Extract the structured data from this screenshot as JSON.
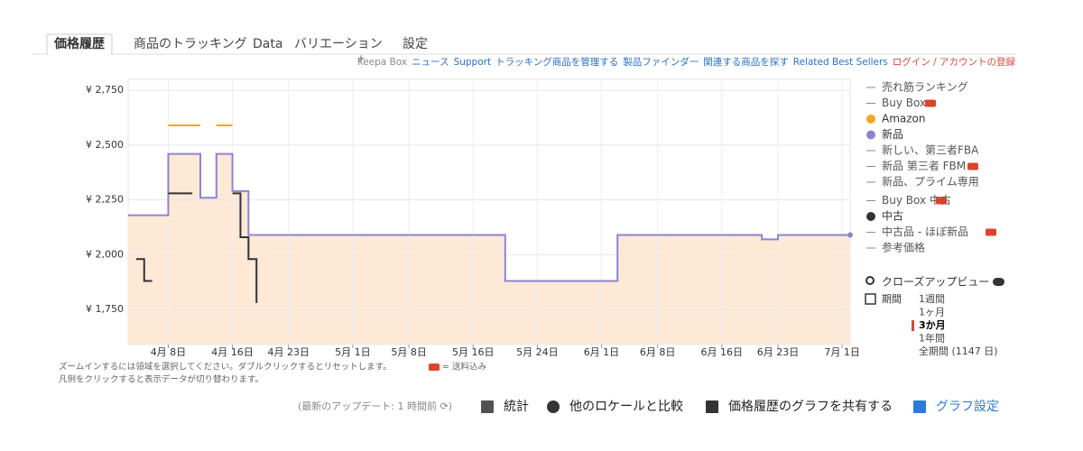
{
  "tabs": [
    "価格履歴",
    "商品のトラッキング",
    "Data",
    "バリエーション",
    "設定"
  ],
  "links": [
    "Keepa Box",
    "ニュース",
    "Support",
    "トラッキング商品を管理する",
    "製品ファインダー",
    "関連する商品を探す",
    "Related Best Sellers",
    "ログイン / アカウントの登録"
  ],
  "legend_other": [
    "売れ筋ランキング",
    "Buy Box",
    "新しい、第三者FBA",
    "新品 第三者 FBM",
    "新品、プライム専用",
    "Buy Box 中古",
    "中古品 - ほぼ新品",
    "参考価格"
  ],
  "closeup": "クローズアップビュー",
  "period": {
    "label": "期間",
    "options": [
      "1週間",
      "1ヶ月",
      "3か月",
      "1年間",
      "全期間 (1147 日)"
    ],
    "selected": 2
  },
  "notes": [
    "ズームインするには領域を選択してください。ダブルクリックするとリセットします。",
    "= 送料込み",
    "凡例をクリックすると表示データが切り替わります。"
  ],
  "footer": {
    "update": "(最新のアップデート: 1 時間前 ⟳)",
    "actions": [
      "統計",
      "他のロケールと比較",
      "価格履歴のグラフを共有する",
      "グラフ設定"
    ]
  },
  "chart_data": {
    "type": "step",
    "xlim": [
      "04-03",
      "07-02"
    ],
    "xticks": [
      {
        "value": "04-08",
        "label": "4月 8日"
      },
      {
        "value": "04-16",
        "label": "4月 16日"
      },
      {
        "value": "04-23",
        "label": "4月 23日"
      },
      {
        "value": "05-01",
        "label": "5月 1日"
      },
      {
        "value": "05-08",
        "label": "5月 8日"
      },
      {
        "value": "05-16",
        "label": "5月 16日"
      },
      {
        "value": "05-24",
        "label": "5月 24日"
      },
      {
        "value": "06-01",
        "label": "6月 1日"
      },
      {
        "value": "06-08",
        "label": "6月 8日"
      },
      {
        "value": "06-16",
        "label": "6月 16日"
      },
      {
        "value": "06-23",
        "label": "6月 23日"
      },
      {
        "value": "07-01",
        "label": "7月 1日"
      }
    ],
    "ylim": [
      1590,
      2800
    ],
    "yticks": [
      {
        "value": 1750,
        "label": "¥ 1,750"
      },
      {
        "value": 2000,
        "label": "¥ 2,000"
      },
      {
        "value": 2250,
        "label": "¥ 2,250"
      },
      {
        "value": 2500,
        "label": "¥ 2,500"
      },
      {
        "value": 2750,
        "label": "¥ 2,750"
      }
    ],
    "grid": true,
    "area_series": 1,
    "area_color": "#fde9d6",
    "series": [
      {
        "name": "Amazon",
        "color": "#f5a623",
        "x": [
          "04-08",
          "04-12",
          "04-14",
          "04-16"
        ],
        "values": [
          2590,
          null,
          2590,
          null
        ]
      },
      {
        "name": "新品",
        "color": "#8c84d0",
        "x": [
          "04-03",
          "04-08",
          "04-12",
          "04-14",
          "04-16",
          "04-18",
          "05-20",
          "06-03",
          "06-21",
          "06-23",
          "07-02"
        ],
        "values": [
          2180,
          2460,
          2260,
          2460,
          2290,
          2090,
          1880,
          2090,
          2070,
          2090,
          2090
        ]
      },
      {
        "name": "中古",
        "color": "#333333",
        "x": [
          "04-04",
          "04-05",
          "04-06",
          "04-08",
          "04-11",
          "04-16",
          "04-17",
          "04-18",
          "04-19"
        ],
        "values": [
          1980,
          1880,
          null,
          2280,
          null,
          2280,
          2080,
          1980,
          1780
        ]
      }
    ]
  }
}
